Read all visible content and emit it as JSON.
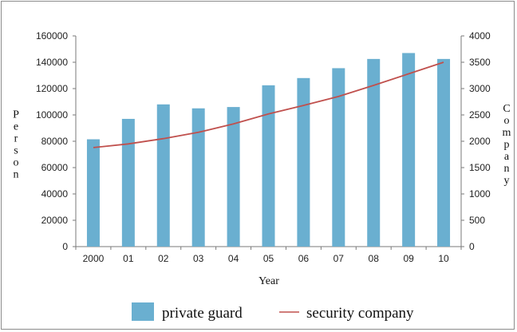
{
  "chart_data": {
    "type": "bar",
    "categories": [
      "2000",
      "01",
      "02",
      "03",
      "04",
      "05",
      "06",
      "07",
      "08",
      "09",
      "10"
    ],
    "xlabel": "Year",
    "ylabel_left": "Person",
    "ylabel_right": "Company",
    "ylim_left": [
      0,
      160000
    ],
    "ylim_right": [
      0,
      4000
    ],
    "yticks_left": [
      "0",
      "20000",
      "40000",
      "60000",
      "80000",
      "100000",
      "120000",
      "140000",
      "160000"
    ],
    "yticks_right": [
      "0",
      "500",
      "1000",
      "1500",
      "2000",
      "2500",
      "3000",
      "3500",
      "4000"
    ],
    "series": [
      {
        "name": "private guard",
        "type": "bar",
        "axis": "left",
        "color": "#6aafd0",
        "values": [
          81500,
          97000,
          108000,
          105000,
          106000,
          122500,
          128000,
          135500,
          142500,
          147000,
          142500
        ]
      },
      {
        "name": "security company",
        "type": "line",
        "axis": "right",
        "color": "#c0504d",
        "values": [
          1880,
          1950,
          2050,
          2170,
          2330,
          2520,
          2680,
          2850,
          3060,
          3280,
          3500
        ]
      }
    ],
    "legend": "bottom",
    "grid": false
  }
}
